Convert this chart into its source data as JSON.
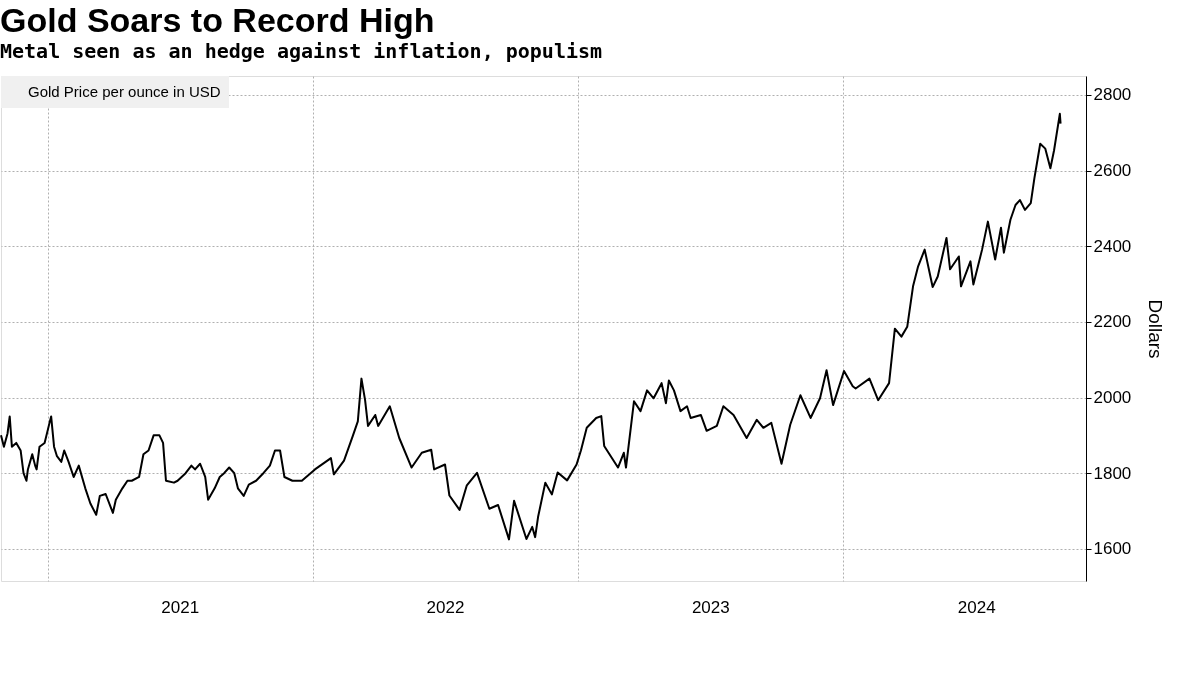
{
  "chart_data": {
    "type": "line",
    "title": "Gold Soars to Record High",
    "subtitle": "Metal seen as an hedge against inflation, populism",
    "ylabel": "Dollars",
    "xlim": [
      "2020-10-29",
      "2024-11-30"
    ],
    "ylim": [
      1515,
      2850
    ],
    "yticks": [
      1600,
      1800,
      2000,
      2200,
      2400,
      2600,
      2800
    ],
    "xticks": [
      {
        "value": "2021-01-01",
        "label": null
      },
      {
        "value": "2021-07-02",
        "label": "2021"
      },
      {
        "value": "2022-01-01",
        "label": null
      },
      {
        "value": "2022-07-02",
        "label": "2022"
      },
      {
        "value": "2023-01-01",
        "label": null
      },
      {
        "value": "2023-07-02",
        "label": "2023"
      },
      {
        "value": "2024-01-01",
        "label": null
      },
      {
        "value": "2024-07-02",
        "label": "2024"
      }
    ],
    "grid": true,
    "legend": "top left",
    "x": [
      "2020-10-29",
      "2020-11-02",
      "2020-11-07",
      "2020-11-10",
      "2020-11-13",
      "2020-11-19",
      "2020-11-25",
      "2020-11-29",
      "2020-12-03",
      "2020-12-05",
      "2020-12-11",
      "2020-12-15",
      "2020-12-17",
      "2020-12-21",
      "2020-12-28",
      "2021-01-04",
      "2021-01-06",
      "2021-01-10",
      "2021-01-14",
      "2021-01-20",
      "2021-01-24",
      "2021-01-30",
      "2021-02-06",
      "2021-02-13",
      "2021-02-22",
      "2021-03-01",
      "2021-03-09",
      "2021-03-14",
      "2021-03-22",
      "2021-04-01",
      "2021-04-05",
      "2021-04-14",
      "2021-04-21",
      "2021-04-27",
      "2021-05-07",
      "2021-05-13",
      "2021-05-20",
      "2021-05-27",
      "2021-06-04",
      "2021-06-09",
      "2021-06-13",
      "2021-06-24",
      "2021-06-29",
      "2021-07-10",
      "2021-07-18",
      "2021-07-23",
      "2021-07-30",
      "2021-08-06",
      "2021-08-10",
      "2021-08-19",
      "2021-08-26",
      "2021-09-01",
      "2021-09-08",
      "2021-09-15",
      "2021-09-20",
      "2021-09-28",
      "2021-10-05",
      "2021-10-15",
      "2021-10-25",
      "2021-11-03",
      "2021-11-10",
      "2021-11-17",
      "2021-11-23",
      "2021-12-04",
      "2021-12-17",
      "2022-01-04",
      "2022-01-26",
      "2022-01-30",
      "2022-02-13",
      "2022-02-25",
      "2022-03-04",
      "2022-03-09",
      "2022-03-14",
      "2022-03-18",
      "2022-03-28",
      "2022-04-01",
      "2022-04-17",
      "2022-04-30",
      "2022-05-17",
      "2022-05-31",
      "2022-06-13",
      "2022-06-17",
      "2022-07-02",
      "2022-07-08",
      "2022-07-22",
      "2022-08-01",
      "2022-08-15",
      "2022-09-01",
      "2022-09-13",
      "2022-09-28",
      "2022-10-05",
      "2022-10-22",
      "2022-10-30",
      "2022-11-03",
      "2022-11-07",
      "2022-11-17",
      "2022-11-26",
      "2022-12-04",
      "2022-12-17",
      "2022-12-30",
      "2023-01-05",
      "2023-01-13",
      "2023-01-26",
      "2023-02-02",
      "2023-02-06",
      "2023-02-25",
      "2023-03-05",
      "2023-03-08",
      "2023-03-19",
      "2023-03-28",
      "2023-04-06",
      "2023-04-15",
      "2023-04-26",
      "2023-05-02",
      "2023-05-06",
      "2023-05-13",
      "2023-05-22",
      "2023-05-31",
      "2023-06-05",
      "2023-06-19",
      "2023-06-27",
      "2023-07-11",
      "2023-07-20",
      "2023-08-03",
      "2023-08-21",
      "2023-09-04",
      "2023-09-13",
      "2023-09-24",
      "2023-10-08",
      "2023-10-20",
      "2023-11-03",
      "2023-11-17",
      "2023-11-30",
      "2023-12-09",
      "2023-12-18",
      "2024-01-02",
      "2024-01-14",
      "2024-01-18",
      "2024-02-06",
      "2024-02-18",
      "2024-03-04",
      "2024-03-12",
      "2024-03-21",
      "2024-03-29",
      "2024-04-06",
      "2024-04-13",
      "2024-04-22",
      "2024-05-03",
      "2024-05-10",
      "2024-05-22",
      "2024-05-27",
      "2024-06-08",
      "2024-06-11",
      "2024-06-24",
      "2024-06-28",
      "2024-07-10",
      "2024-07-18",
      "2024-07-28",
      "2024-08-05",
      "2024-08-09",
      "2024-08-18",
      "2024-08-25",
      "2024-08-31",
      "2024-09-07",
      "2024-09-15",
      "2024-09-20",
      "2024-09-28",
      "2024-10-05",
      "2024-10-12",
      "2024-10-17",
      "2024-10-25",
      "2024-10-26"
    ],
    "series": [
      {
        "name": "Gold Price per ounce in USD",
        "color": "#000000",
        "values": [
          1900,
          1870,
          1905,
          1950,
          1870,
          1880,
          1860,
          1800,
          1780,
          1810,
          1850,
          1820,
          1810,
          1870,
          1880,
          1935,
          1950,
          1870,
          1845,
          1830,
          1860,
          1830,
          1790,
          1820,
          1760,
          1720,
          1690,
          1740,
          1745,
          1695,
          1730,
          1760,
          1780,
          1780,
          1790,
          1850,
          1860,
          1900,
          1900,
          1880,
          1780,
          1775,
          1780,
          1800,
          1820,
          1810,
          1825,
          1790,
          1730,
          1760,
          1790,
          1800,
          1815,
          1800,
          1760,
          1740,
          1770,
          1780,
          1800,
          1820,
          1860,
          1860,
          1790,
          1780,
          1780,
          1810,
          1840,
          1797,
          1833,
          1898,
          1937,
          2050,
          1993,
          1925,
          1954,
          1925,
          1977,
          1893,
          1815,
          1854,
          1862,
          1810,
          1823,
          1741,
          1703,
          1768,
          1801,
          1706,
          1716,
          1625,
          1727,
          1626,
          1658,
          1631,
          1684,
          1775,
          1744,
          1802,
          1781,
          1823,
          1860,
          1920,
          1946,
          1951,
          1872,
          1815,
          1854,
          1815,
          1990,
          1964,
          2019,
          1998,
          2038,
          1985,
          2045,
          2019,
          1964,
          1977,
          1946,
          1954,
          1912,
          1925,
          1977,
          1954,
          1893,
          1941,
          1920,
          1933,
          1825,
          1928,
          2006,
          1946,
          1998,
          2072,
          1980,
          2070,
          2030,
          2024,
          2050,
          1993,
          2038,
          2182,
          2161,
          2187,
          2294,
          2347,
          2391,
          2292,
          2320,
          2422,
          2339,
          2373,
          2294,
          2360,
          2299,
          2391,
          2465,
          2365,
          2449,
          2383,
          2470,
          2509,
          2522,
          2496,
          2514,
          2580,
          2671,
          2658,
          2606,
          2653,
          2750,
          2724
        ]
      }
    ]
  }
}
